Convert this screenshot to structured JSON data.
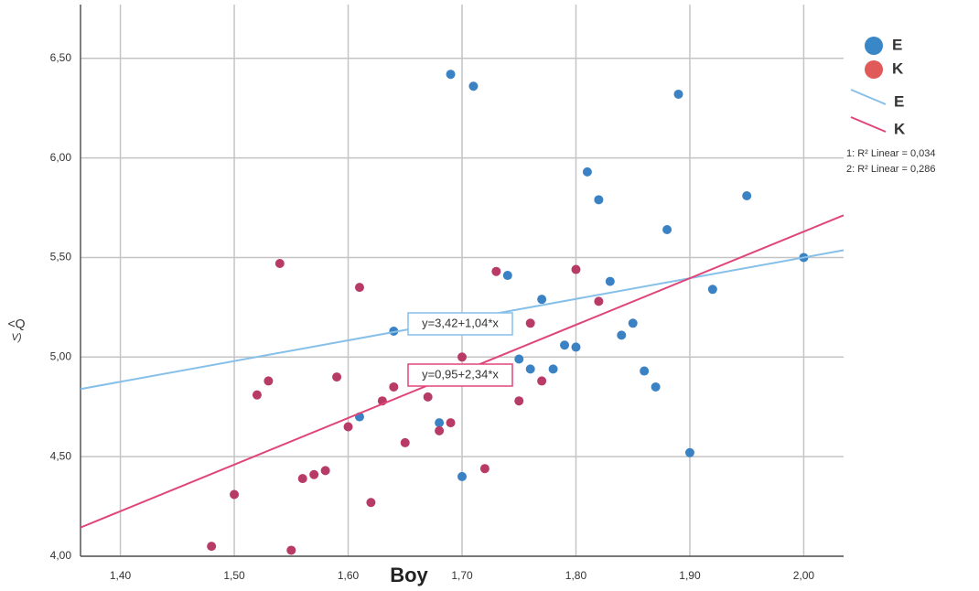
{
  "chart_data": {
    "type": "scatter",
    "x_label": "Boy",
    "y_label": [
      "<Q",
      "V)"
    ],
    "xlim": [
      1.365,
      2.035
    ],
    "ylim": [
      4.0,
      6.77
    ],
    "xticks": [
      {
        "value": 1.4,
        "label": "1,40"
      },
      {
        "value": 1.5,
        "label": "1,50"
      },
      {
        "value": 1.6,
        "label": "1,60"
      },
      {
        "value": 1.7,
        "label": "1,70"
      },
      {
        "value": 1.8,
        "label": "1,80"
      },
      {
        "value": 1.9,
        "label": "1,90"
      },
      {
        "value": 2.0,
        "label": "2,00"
      }
    ],
    "yticks": [
      {
        "value": 4.0,
        "label": "4,00"
      },
      {
        "value": 4.5,
        "label": "4,50"
      },
      {
        "value": 5.0,
        "label": "5,00"
      },
      {
        "value": 5.5,
        "label": "5,50"
      },
      {
        "value": 6.0,
        "label": "6,00"
      },
      {
        "value": 6.5,
        "label": "6,50"
      }
    ],
    "grid": true,
    "series": [
      {
        "name": "E",
        "color": "#3b82c4",
        "line_color": "#86bfe8",
        "x": [
          1.69,
          1.71,
          1.89,
          1.81,
          1.82,
          1.95,
          1.88,
          1.74,
          1.83,
          2.0,
          1.92,
          1.77,
          1.85,
          1.84,
          1.64,
          1.79,
          1.8,
          1.75,
          1.76,
          1.78,
          1.86,
          1.87,
          1.61,
          1.68,
          1.7,
          1.9
        ],
        "values": [
          6.42,
          6.36,
          6.32,
          5.93,
          5.79,
          5.81,
          5.64,
          5.41,
          5.38,
          5.5,
          5.34,
          5.29,
          5.17,
          5.11,
          5.13,
          5.06,
          5.05,
          4.99,
          4.94,
          4.94,
          4.93,
          4.85,
          4.7,
          4.67,
          4.4,
          4.52
        ]
      },
      {
        "name": "K",
        "color": "#b83a66",
        "line_color": "#e0457a",
        "x": [
          1.54,
          1.61,
          1.73,
          1.8,
          1.82,
          1.76,
          1.7,
          1.59,
          1.53,
          1.52,
          1.77,
          1.75,
          1.64,
          1.63,
          1.67,
          1.6,
          1.69,
          1.68,
          1.65,
          1.72,
          1.58,
          1.57,
          1.56,
          1.5,
          1.62,
          1.48,
          1.55
        ],
        "values": [
          5.47,
          5.35,
          5.43,
          5.44,
          5.28,
          5.17,
          5.0,
          4.9,
          4.88,
          4.81,
          4.88,
          4.78,
          4.85,
          4.78,
          4.8,
          4.65,
          4.67,
          4.63,
          4.57,
          4.44,
          4.43,
          4.41,
          4.39,
          4.31,
          4.27,
          4.05,
          4.03
        ]
      }
    ],
    "fit_lines": [
      {
        "intercept": 3.42,
        "slope": 1.04,
        "label": "y=3,42+1,04*x",
        "r2_label": "1: R² Linear = 0,034"
      },
      {
        "intercept": 0.95,
        "slope": 2.34,
        "label": "y=0,95+2,34*x",
        "r2_label": "2: R² Linear = 0,286"
      }
    ]
  }
}
